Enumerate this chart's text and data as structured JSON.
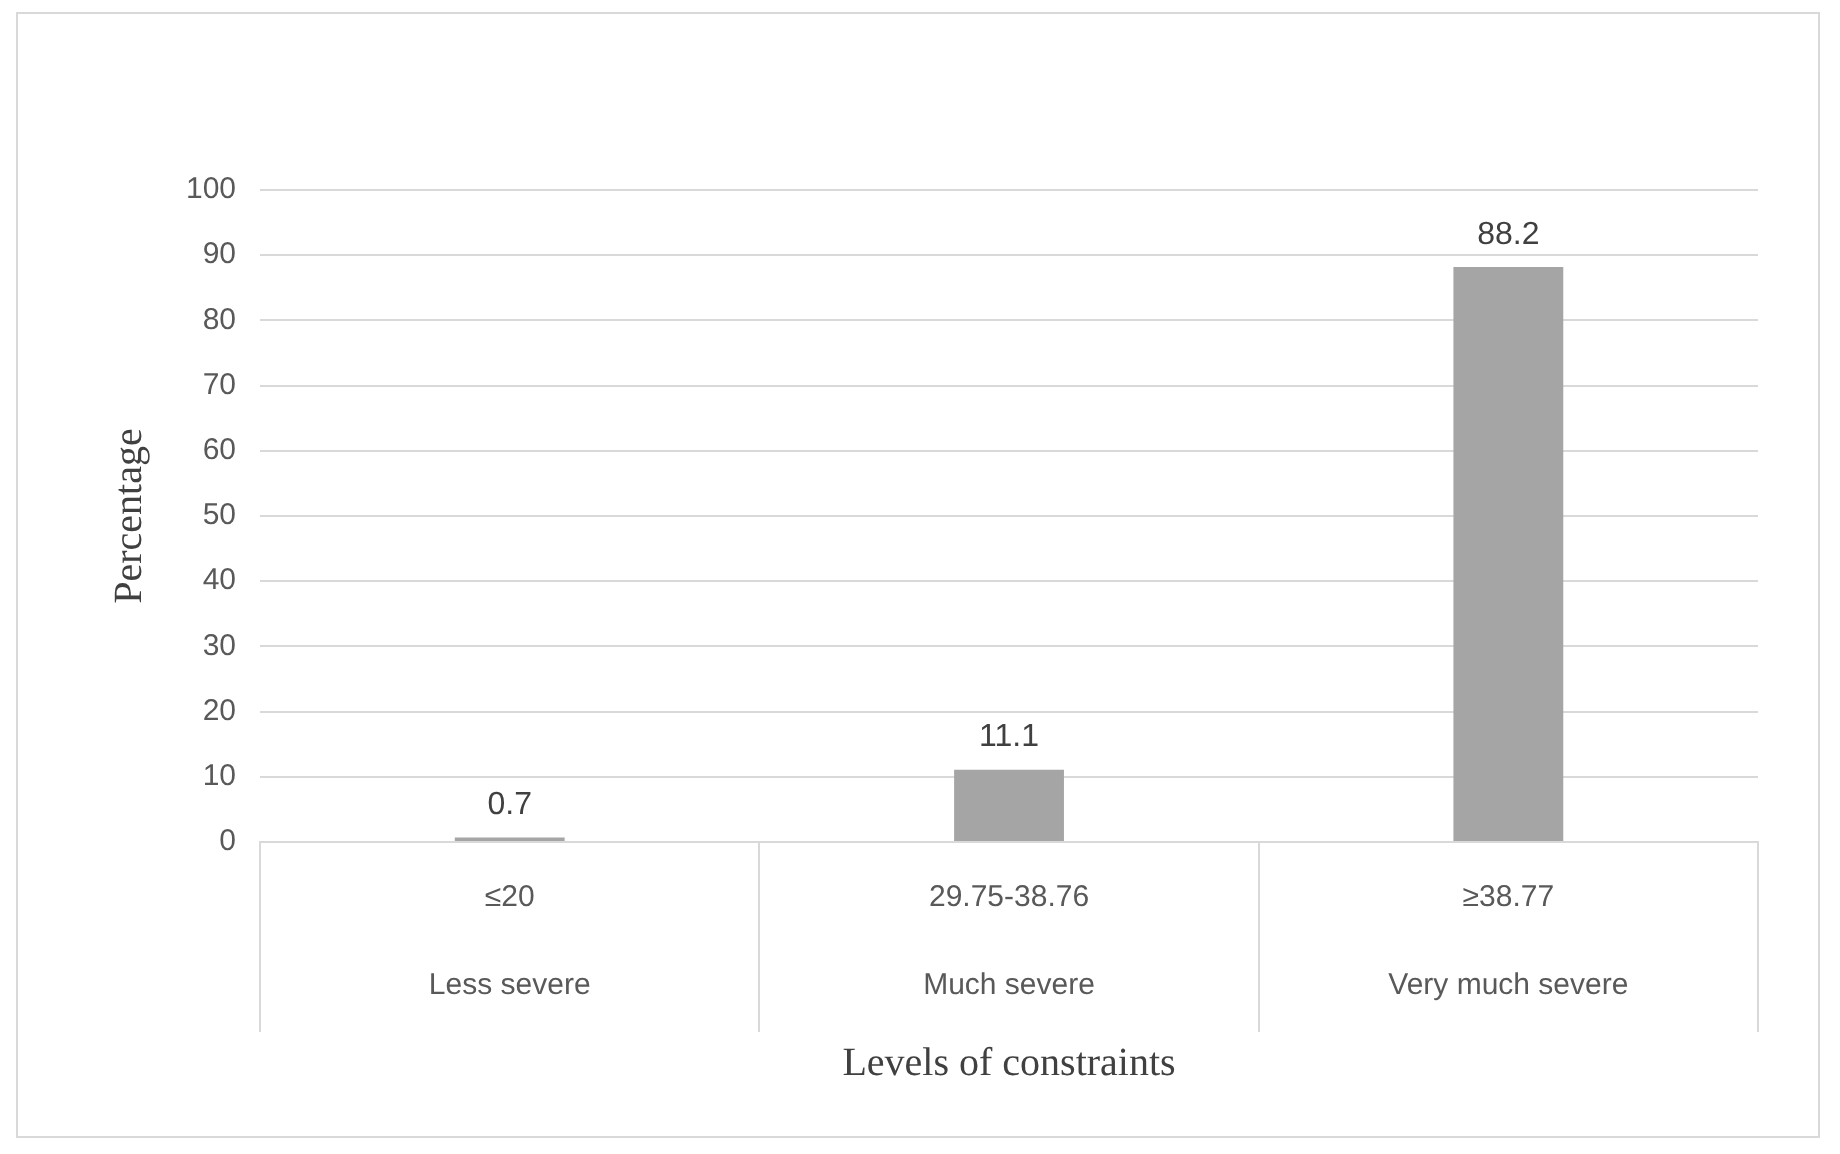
{
  "chart_data": {
    "type": "bar",
    "xlabel": "Levels of constraints",
    "ylabel": "Percentage",
    "categories": [
      "≤20\nLess severe",
      "29.75-38.76\nMuch severe",
      "≥38.77\nVery much severe"
    ],
    "values": [
      0.7,
      11.1,
      88.2
    ],
    "color": "#a5a5a5",
    "ylim": [
      0,
      100
    ],
    "yticks": [
      0,
      10,
      20,
      30,
      40,
      50,
      60,
      70,
      80,
      90,
      100
    ],
    "grid": "y",
    "legend": false,
    "data_labels": true
  }
}
